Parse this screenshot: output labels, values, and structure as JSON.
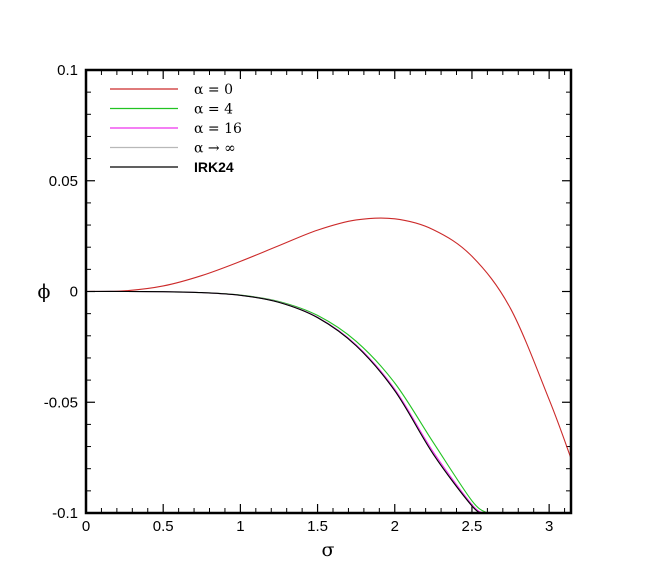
{
  "chart_data": {
    "type": "line",
    "xlabel": "σ",
    "ylabel": "ϕ",
    "xlim": [
      0,
      3.14159
    ],
    "ylim": [
      -0.1,
      0.1
    ],
    "x_ticks": [
      0,
      0.5,
      1,
      1.5,
      2,
      2.5,
      3
    ],
    "x_tick_labels": [
      "0",
      "0.5",
      "1",
      "1.5",
      "2",
      "2.5",
      "3"
    ],
    "y_ticks": [
      0.1,
      0.05,
      0,
      -0.05,
      -0.1
    ],
    "y_tick_labels": [
      "0.1",
      "0.05",
      "0",
      "-0.05",
      "-0.1"
    ],
    "grid": false,
    "legend_position": "top-left",
    "series": [
      {
        "name": "α = 0",
        "color": "#cc2a2a",
        "x": [
          0,
          0.25,
          0.5,
          0.75,
          1.0,
          1.25,
          1.5,
          1.75,
          2.0,
          2.25,
          2.5,
          2.75,
          3.0,
          3.14
        ],
        "y": [
          0,
          0.0003,
          0.0025,
          0.0072,
          0.0136,
          0.0207,
          0.0277,
          0.0323,
          0.0328,
          0.0279,
          0.0159,
          -0.0077,
          -0.0488,
          -0.075
        ]
      },
      {
        "name": "α = 4",
        "color": "#22c322",
        "x": [
          0,
          0.25,
          0.5,
          0.75,
          1.0,
          1.25,
          1.5,
          1.75,
          2.0,
          2.25,
          2.5,
          2.6
        ],
        "y": [
          0,
          0,
          -0.0001,
          -0.0005,
          -0.0016,
          -0.0045,
          -0.0108,
          -0.0225,
          -0.0413,
          -0.0682,
          -0.0945,
          -0.1
        ]
      },
      {
        "name": "α = 16",
        "color": "#ee33ee",
        "x": [
          0,
          0.25,
          0.5,
          0.75,
          1.0,
          1.25,
          1.5,
          1.75,
          2.0,
          2.25,
          2.5,
          2.58
        ],
        "y": [
          0,
          0,
          -0.0001,
          -0.0005,
          -0.0017,
          -0.0048,
          -0.0116,
          -0.0241,
          -0.0441,
          -0.0725,
          -0.0962,
          -0.1
        ]
      },
      {
        "name": "α → ∞",
        "color": "#b8b8b8",
        "x": [
          0,
          0.25,
          0.5,
          0.75,
          1.0,
          1.25,
          1.5,
          1.75,
          2.0,
          2.25,
          2.5,
          2.575
        ],
        "y": [
          0,
          0,
          -0.0001,
          -0.0005,
          -0.0017,
          -0.0049,
          -0.0118,
          -0.0245,
          -0.0448,
          -0.0735,
          -0.0968,
          -0.1
        ]
      },
      {
        "name": "IRK24",
        "color": "#000000",
        "x": [
          0,
          0.25,
          0.5,
          0.75,
          1.0,
          1.25,
          1.5,
          1.75,
          2.0,
          2.25,
          2.5,
          2.575
        ],
        "y": [
          0,
          0,
          -0.0001,
          -0.0005,
          -0.0017,
          -0.0049,
          -0.0118,
          -0.0245,
          -0.0448,
          -0.0735,
          -0.0968,
          -0.1
        ]
      }
    ]
  }
}
